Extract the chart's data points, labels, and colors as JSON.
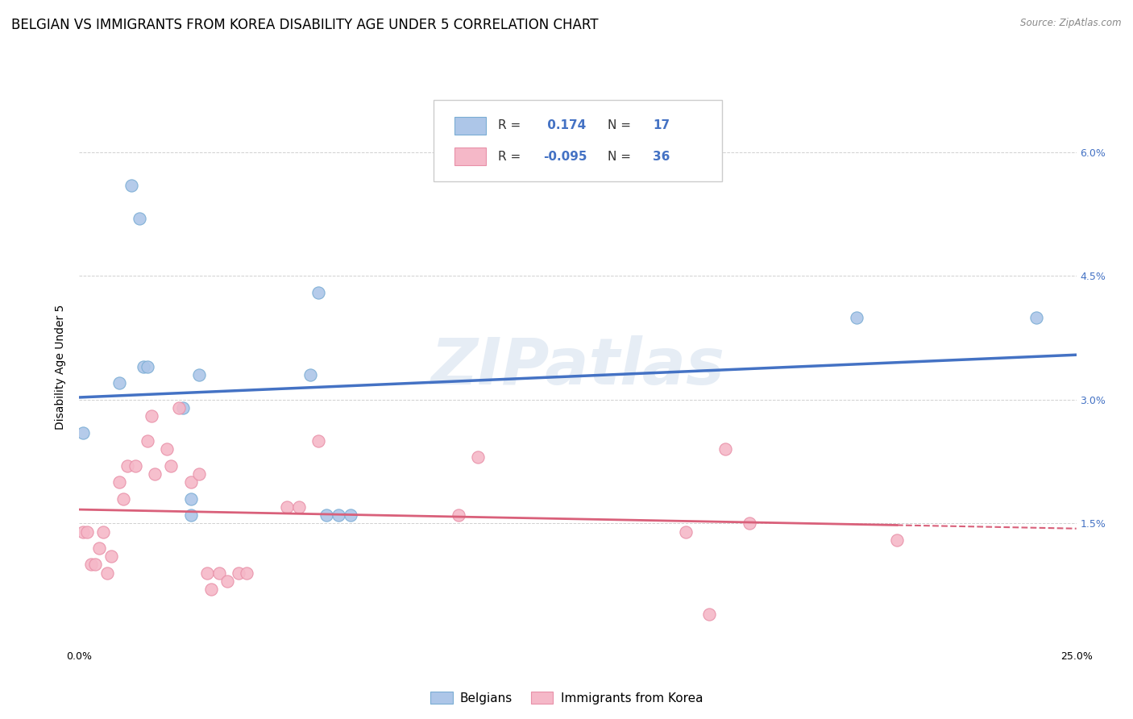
{
  "title": "BELGIAN VS IMMIGRANTS FROM KOREA DISABILITY AGE UNDER 5 CORRELATION CHART",
  "source": "Source: ZipAtlas.com",
  "ylabel": "Disability Age Under 5",
  "watermark": "ZIPatlas",
  "xlim": [
    0.0,
    0.25
  ],
  "ylim": [
    0.0,
    0.068
  ],
  "xticks": [
    0.0,
    0.05,
    0.1,
    0.15,
    0.2,
    0.25
  ],
  "yticks": [
    0.0,
    0.015,
    0.03,
    0.045,
    0.06
  ],
  "yticklabels_right": [
    "1.5%",
    "3.0%",
    "4.5%",
    "6.0%"
  ],
  "belgian_color": "#adc6e8",
  "korean_color": "#f5b8c8",
  "belgian_edge": "#7aadd4",
  "korean_edge": "#e890a8",
  "belgian_line_color": "#4472c4",
  "korean_line_color": "#d9607a",
  "belgian_R": 0.174,
  "belgian_N": 17,
  "korean_R": -0.095,
  "korean_N": 36,
  "belgians_x": [
    0.001,
    0.01,
    0.013,
    0.015,
    0.016,
    0.017,
    0.026,
    0.028,
    0.028,
    0.03,
    0.058,
    0.06,
    0.062,
    0.065,
    0.068,
    0.195,
    0.24
  ],
  "belgians_y": [
    0.026,
    0.032,
    0.056,
    0.052,
    0.034,
    0.034,
    0.029,
    0.016,
    0.018,
    0.033,
    0.033,
    0.043,
    0.016,
    0.016,
    0.016,
    0.04,
    0.04
  ],
  "koreans_x": [
    0.001,
    0.002,
    0.003,
    0.004,
    0.005,
    0.006,
    0.007,
    0.008,
    0.01,
    0.011,
    0.012,
    0.014,
    0.017,
    0.018,
    0.019,
    0.022,
    0.023,
    0.025,
    0.028,
    0.03,
    0.032,
    0.033,
    0.035,
    0.037,
    0.04,
    0.042,
    0.052,
    0.055,
    0.06,
    0.095,
    0.1,
    0.152,
    0.158,
    0.162,
    0.168,
    0.205
  ],
  "koreans_y": [
    0.014,
    0.014,
    0.01,
    0.01,
    0.012,
    0.014,
    0.009,
    0.011,
    0.02,
    0.018,
    0.022,
    0.022,
    0.025,
    0.028,
    0.021,
    0.024,
    0.022,
    0.029,
    0.02,
    0.021,
    0.009,
    0.007,
    0.009,
    0.008,
    0.009,
    0.009,
    0.017,
    0.017,
    0.025,
    0.016,
    0.023,
    0.014,
    0.004,
    0.024,
    0.015,
    0.013
  ],
  "title_fontsize": 12,
  "label_fontsize": 10,
  "tick_fontsize": 9,
  "legend_fontsize": 11,
  "scatter_size": 120,
  "background_color": "#ffffff",
  "grid_color": "#d0d0d0"
}
